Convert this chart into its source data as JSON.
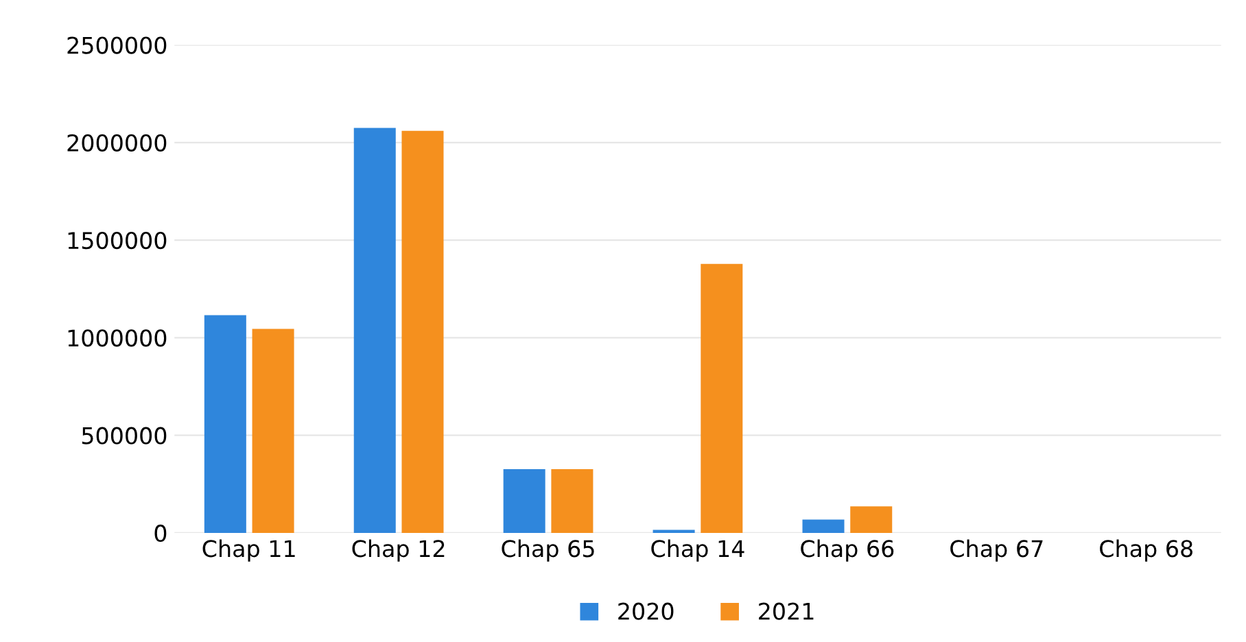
{
  "chart_data": {
    "type": "bar",
    "categories": [
      "Chap 11",
      "Chap 12",
      "Chap 65",
      "Chap 14",
      "Chap 66",
      "Chap 67",
      "Chap 68"
    ],
    "series": [
      {
        "name": "2020",
        "color": "#2f86dc",
        "values": [
          1115000,
          2075000,
          326000,
          15000,
          68000,
          0,
          0
        ]
      },
      {
        "name": "2021",
        "color": "#f5901e",
        "values": [
          1045000,
          2060000,
          326000,
          1378000,
          136000,
          0,
          0
        ]
      }
    ],
    "ylim": [
      0,
      2500000
    ],
    "yticks": [
      0,
      500000,
      1000000,
      1500000,
      2000000,
      2500000
    ],
    "grid": "y",
    "legend": "bottom"
  }
}
